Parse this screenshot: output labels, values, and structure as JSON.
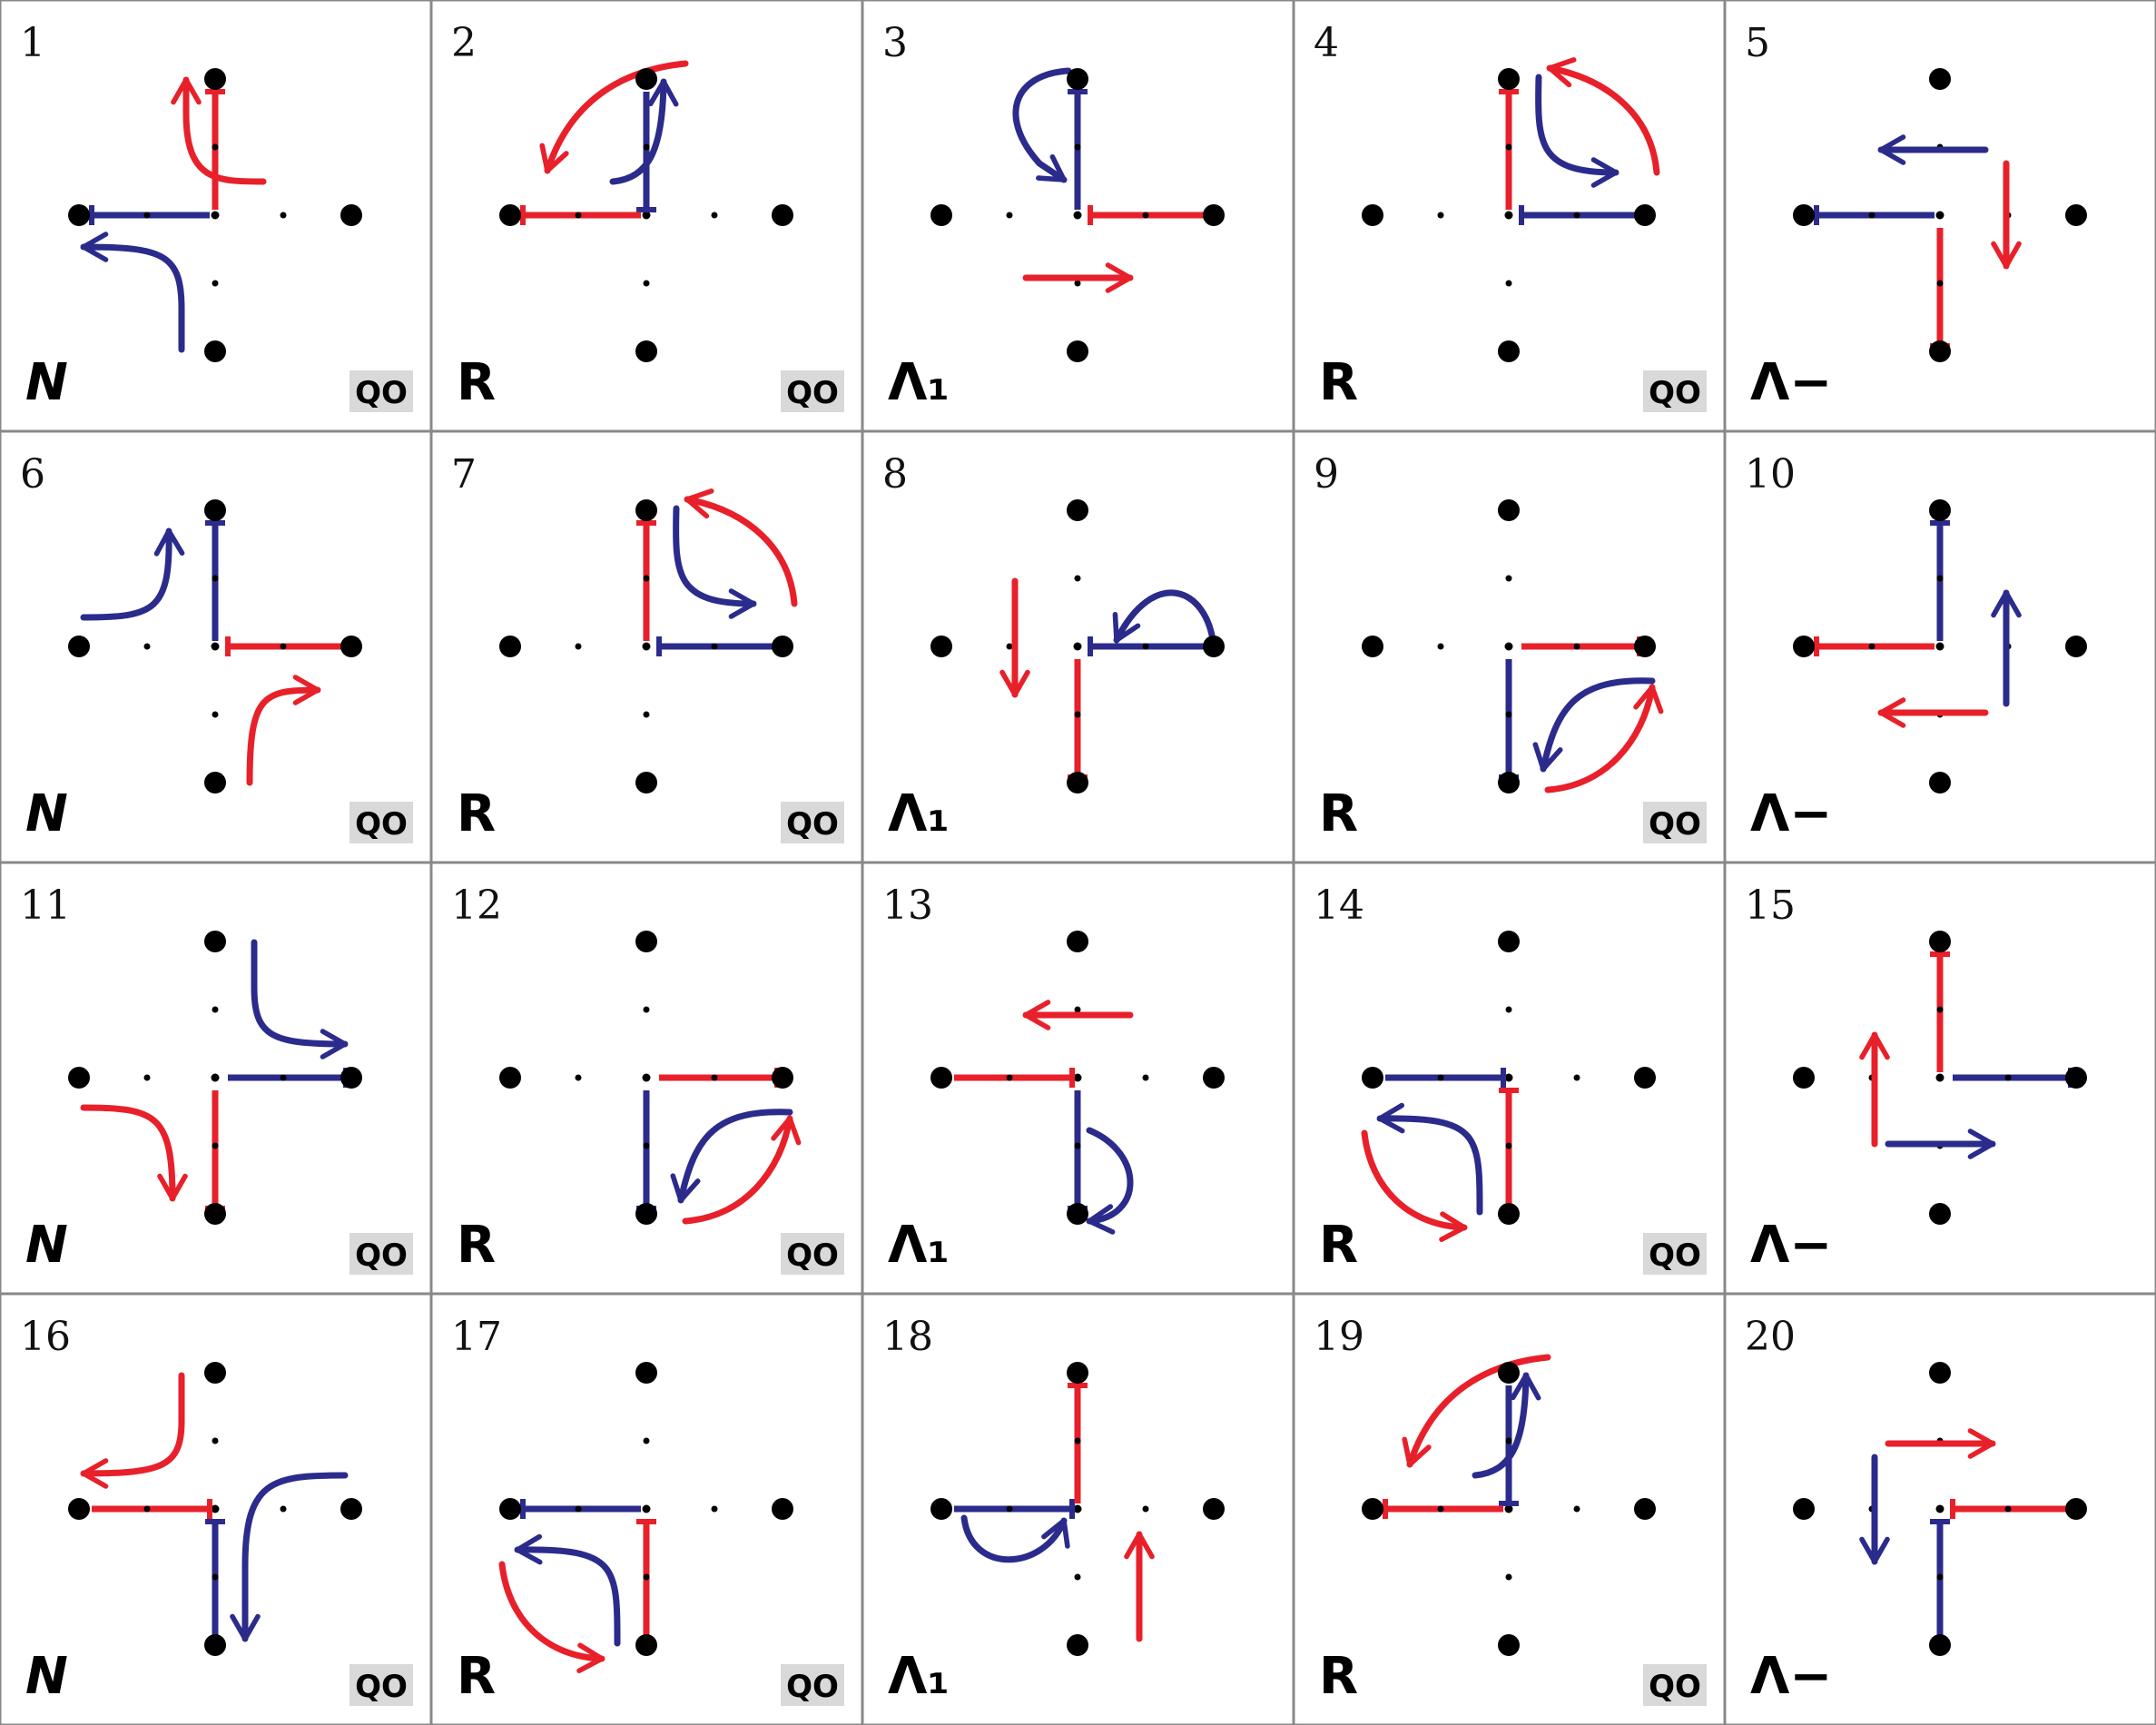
{
  "figure": {
    "type": "grid of 20 panels, 5 columns x 4 rows",
    "colors": {
      "red": "#e8202a",
      "blue": "#2b2b8c",
      "grid": "#888888",
      "badge": "#d9d9d9"
    },
    "panels": [
      {
        "number": "1",
        "label": "N",
        "italic": true,
        "badge": "QO"
      },
      {
        "number": "2",
        "label": "R",
        "italic": false,
        "badge": "QO"
      },
      {
        "number": "3",
        "label": "Λ₁",
        "italic": false,
        "badge": ""
      },
      {
        "number": "4",
        "label": "R",
        "italic": false,
        "badge": "QO"
      },
      {
        "number": "5",
        "label": "Λ−",
        "italic": false,
        "badge": ""
      },
      {
        "number": "6",
        "label": "N",
        "italic": true,
        "badge": "QO"
      },
      {
        "number": "7",
        "label": "R",
        "italic": false,
        "badge": "QO"
      },
      {
        "number": "8",
        "label": "Λ₁",
        "italic": false,
        "badge": ""
      },
      {
        "number": "9",
        "label": "R",
        "italic": false,
        "badge": "QO"
      },
      {
        "number": "10",
        "label": "Λ−",
        "italic": false,
        "badge": ""
      },
      {
        "number": "11",
        "label": "N",
        "italic": true,
        "badge": "QO"
      },
      {
        "number": "12",
        "label": "R",
        "italic": false,
        "badge": "QO"
      },
      {
        "number": "13",
        "label": "Λ₁",
        "italic": false,
        "badge": ""
      },
      {
        "number": "14",
        "label": "R",
        "italic": false,
        "badge": "QO"
      },
      {
        "number": "15",
        "label": "Λ−",
        "italic": false,
        "badge": ""
      },
      {
        "number": "16",
        "label": "N",
        "italic": true,
        "badge": "QO"
      },
      {
        "number": "17",
        "label": "R",
        "italic": false,
        "badge": "QO"
      },
      {
        "number": "18",
        "label": "Λ₁",
        "italic": false,
        "badge": ""
      },
      {
        "number": "19",
        "label": "R",
        "italic": false,
        "badge": "QO"
      },
      {
        "number": "20",
        "label": "Λ−",
        "italic": false,
        "badge": ""
      }
    ]
  }
}
